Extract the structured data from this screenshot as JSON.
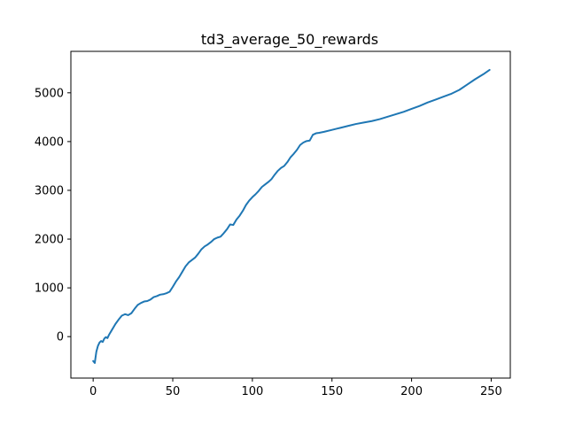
{
  "chart_data": {
    "type": "line",
    "title": "td3_average_50_rewards",
    "xlabel": "",
    "ylabel": "",
    "xlim": [
      -14,
      262
    ],
    "ylim": [
      -850,
      5850
    ],
    "xticks": [
      0,
      50,
      100,
      150,
      200,
      250
    ],
    "yticks": [
      0,
      1000,
      2000,
      3000,
      4000,
      5000
    ],
    "grid": false,
    "line_color": "#1f77b4",
    "series": [
      {
        "x": [
          0,
          1,
          2,
          3,
          4,
          5,
          6,
          7,
          8,
          9,
          10,
          12,
          14,
          16,
          18,
          20,
          22,
          24,
          26,
          28,
          30,
          32,
          34,
          36,
          38,
          40,
          42,
          44,
          46,
          48,
          50,
          52,
          54,
          56,
          58,
          60,
          62,
          64,
          66,
          68,
          70,
          72,
          74,
          76,
          78,
          80,
          82,
          84,
          86,
          88,
          90,
          92,
          94,
          96,
          98,
          100,
          102,
          104,
          106,
          108,
          110,
          112,
          114,
          116,
          118,
          120,
          122,
          124,
          126,
          128,
          130,
          132,
          134,
          136,
          138,
          140,
          142,
          145,
          150,
          155,
          160,
          165,
          170,
          175,
          180,
          185,
          190,
          195,
          200,
          205,
          210,
          215,
          220,
          225,
          230,
          235,
          240,
          245,
          249
        ],
        "values": [
          -500,
          -540,
          -310,
          -190,
          -120,
          -90,
          -110,
          -40,
          -10,
          -30,
          40,
          150,
          260,
          350,
          430,
          460,
          440,
          480,
          570,
          650,
          690,
          720,
          730,
          760,
          810,
          830,
          860,
          870,
          890,
          920,
          1020,
          1130,
          1220,
          1330,
          1440,
          1520,
          1570,
          1620,
          1700,
          1790,
          1850,
          1890,
          1940,
          2000,
          2030,
          2050,
          2120,
          2200,
          2300,
          2290,
          2400,
          2480,
          2580,
          2700,
          2790,
          2860,
          2920,
          2990,
          3070,
          3120,
          3170,
          3230,
          3320,
          3400,
          3460,
          3500,
          3580,
          3680,
          3750,
          3830,
          3930,
          3980,
          4010,
          4020,
          4140,
          4170,
          4180,
          4200,
          4240,
          4280,
          4320,
          4360,
          4390,
          4420,
          4460,
          4510,
          4560,
          4610,
          4670,
          4730,
          4800,
          4860,
          4920,
          4980,
          5060,
          5170,
          5280,
          5380,
          5470
        ]
      }
    ]
  }
}
